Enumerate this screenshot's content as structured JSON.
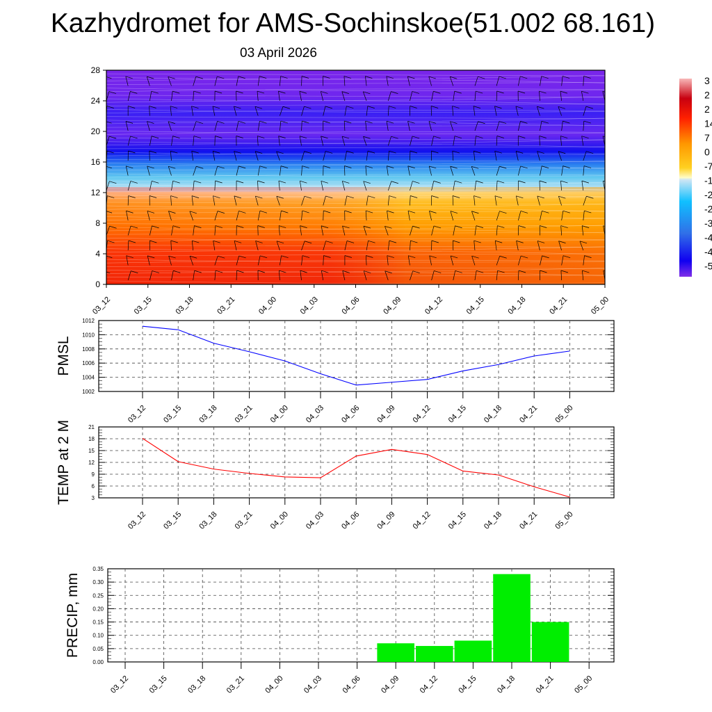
{
  "title": "Kazhydromet for AMS-Sochinskoe(51.002 68.161)",
  "subtitle": "03 April 2026",
  "time_labels": [
    "03_12",
    "03_15",
    "03_18",
    "03_21",
    "04_00",
    "04_03",
    "04_06",
    "04_09",
    "04_12",
    "04_15",
    "04_18",
    "04_21",
    "05_00"
  ],
  "chart_data": [
    {
      "type": "heatmap",
      "name": "temperature-wind cross-section",
      "ylim": [
        0,
        28
      ],
      "yticks": [
        0,
        4,
        8,
        12,
        16,
        20,
        24,
        28
      ],
      "colorbar_labels": [
        "3",
        "2",
        "2",
        "14",
        "7",
        "0",
        "-7",
        "-1",
        "-2",
        "-2",
        "-3",
        "-4",
        "-4",
        "-5"
      ],
      "colors": {
        "warm": "#e8220a",
        "orange": "#ffa500",
        "yellow": "#fff8b0",
        "cold": "#1e90ff",
        "deep": "#2400ff",
        "purple": "#7a22ee"
      }
    },
    {
      "type": "line",
      "ylabel": "PMSL",
      "ylim": [
        1002,
        1012
      ],
      "yticks": [
        1002,
        1004,
        1006,
        1008,
        1010,
        1012
      ],
      "color": "#0000ff",
      "values": [
        1011.2,
        1010.7,
        1008.8,
        1007.6,
        1006.3,
        1004.5,
        1002.9,
        1003.3,
        1003.7,
        1004.9,
        1005.8,
        1007.0,
        1007.7
      ]
    },
    {
      "type": "line",
      "ylabel": "TEMP at 2 M",
      "ylim": [
        3,
        21
      ],
      "yticks": [
        3,
        6,
        9,
        12,
        15,
        18,
        21
      ],
      "color": "#ff0000",
      "values": [
        18.1,
        12.2,
        10.3,
        9.2,
        8.3,
        8.1,
        13.6,
        15.3,
        14.0,
        9.8,
        8.8,
        5.8,
        3.2
      ]
    },
    {
      "type": "bar",
      "ylabel": "PRECIP, mm",
      "ylim": [
        0,
        0.35
      ],
      "yticks": [
        "0.00",
        "0.05",
        "0.10",
        "0.15",
        "0.20",
        "0.25",
        "0.30",
        "0.35"
      ],
      "color": "#00ee00",
      "values": [
        0,
        0,
        0,
        0,
        0,
        0,
        0,
        0.07,
        0.06,
        0.08,
        0.33,
        0.15,
        0
      ]
    }
  ]
}
